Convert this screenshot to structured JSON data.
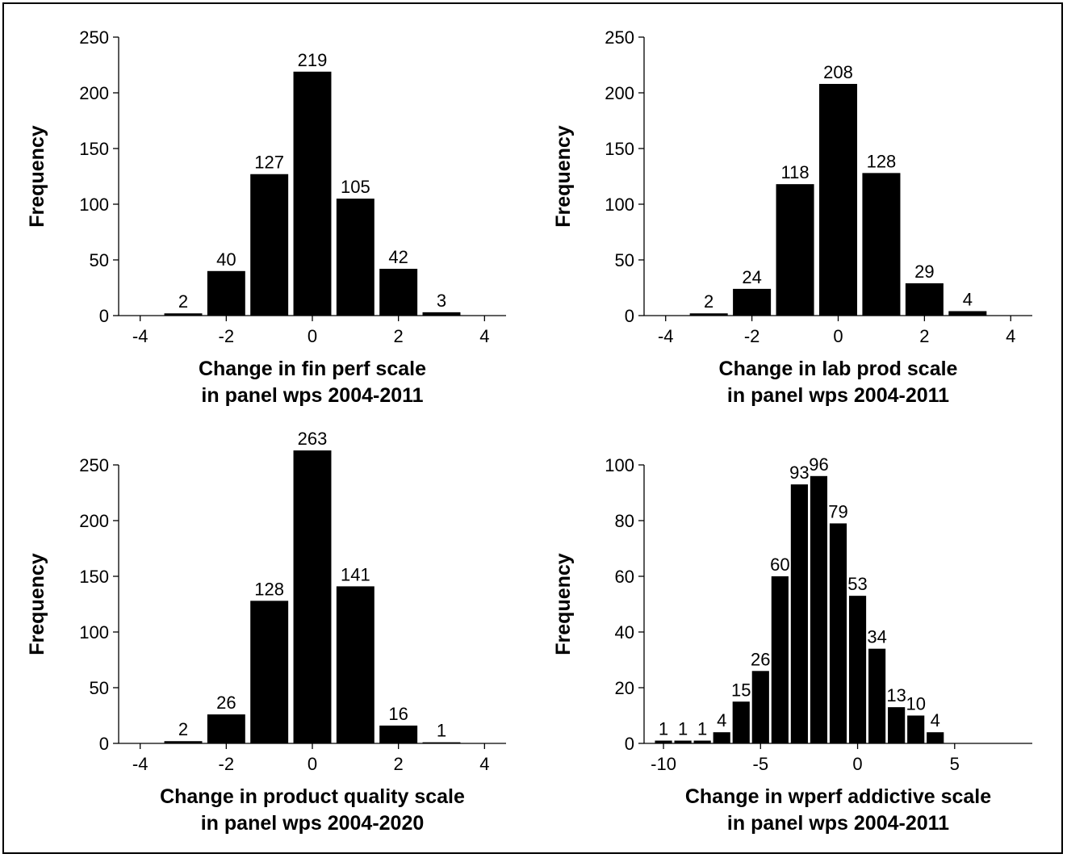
{
  "chart_data": [
    {
      "type": "bar",
      "ylabel": "Frequency",
      "xlabel_lines": [
        "Change in fin perf scale",
        "in panel wps 2004-2011"
      ],
      "xlim": [
        -4.5,
        4.5
      ],
      "ylim": [
        0,
        250
      ],
      "xticks": [
        -4,
        -2,
        0,
        2,
        4
      ],
      "yticks": [
        0,
        50,
        100,
        150,
        200,
        250
      ],
      "bar_width": 0.88,
      "x": [
        -3,
        -2,
        -1,
        0,
        1,
        2,
        3
      ],
      "values": [
        2,
        40,
        127,
        219,
        105,
        42,
        3
      ],
      "labels": [
        "2",
        "40",
        "127",
        "219",
        "105",
        "42",
        "3"
      ],
      "bar_color": "#000000",
      "grid": false,
      "legend": "none"
    },
    {
      "type": "bar",
      "ylabel": "Frequency",
      "xlabel_lines": [
        "Change in lab prod scale",
        "in panel wps 2004-2011"
      ],
      "xlim": [
        -4.5,
        4.5
      ],
      "ylim": [
        0,
        250
      ],
      "xticks": [
        -4,
        -2,
        0,
        2,
        4
      ],
      "yticks": [
        0,
        50,
        100,
        150,
        200,
        250
      ],
      "bar_width": 0.88,
      "x": [
        -3,
        -2,
        -1,
        0,
        1,
        2,
        3
      ],
      "values": [
        2,
        24,
        118,
        208,
        128,
        29,
        4
      ],
      "labels": [
        "2",
        "24",
        "118",
        "208",
        "128",
        "29",
        "4"
      ],
      "bar_color": "#000000",
      "grid": false,
      "legend": "none"
    },
    {
      "type": "bar",
      "ylabel": "Frequency",
      "xlabel_lines": [
        "Change in product quality scale",
        "in panel wps 2004-2020"
      ],
      "xlim": [
        -4.5,
        4.5
      ],
      "ylim": [
        0,
        250
      ],
      "xticks": [
        -4,
        -2,
        0,
        2,
        4
      ],
      "yticks": [
        0,
        50,
        100,
        150,
        200,
        250
      ],
      "bar_width": 0.88,
      "x": [
        -3,
        -2,
        -1,
        0,
        1,
        2,
        3
      ],
      "values": [
        2,
        26,
        128,
        263,
        141,
        16,
        1
      ],
      "labels": [
        "2",
        "26",
        "128",
        "263",
        "141",
        "16",
        "1"
      ],
      "bar_color": "#000000",
      "grid": false,
      "legend": "none"
    },
    {
      "type": "bar",
      "ylabel": "Frequency",
      "xlabel_lines": [
        "Change in wperf addictive scale",
        "in panel wps 2004-2011"
      ],
      "xlim": [
        -11,
        9
      ],
      "ylim": [
        0,
        100
      ],
      "xticks": [
        -10,
        -5,
        0,
        5
      ],
      "yticks": [
        0,
        20,
        40,
        60,
        80,
        100
      ],
      "bar_width": 0.88,
      "x": [
        -10,
        -9,
        -8,
        -7,
        -6,
        -5,
        -4,
        -3,
        -2,
        -1,
        0,
        1,
        2,
        3,
        4,
        5,
        6
      ],
      "values": [
        1,
        1,
        1,
        4,
        15,
        26,
        60,
        93,
        96,
        79,
        53,
        34,
        13,
        10,
        4,
        0,
        0
      ],
      "labels": [
        "1",
        "1",
        "1",
        "4",
        "15",
        "26",
        "60",
        "93",
        "96",
        "79",
        "53",
        "34",
        "13",
        "10",
        "4",
        "",
        ""
      ],
      "bar_color": "#000000",
      "grid": false,
      "legend": "none"
    }
  ]
}
